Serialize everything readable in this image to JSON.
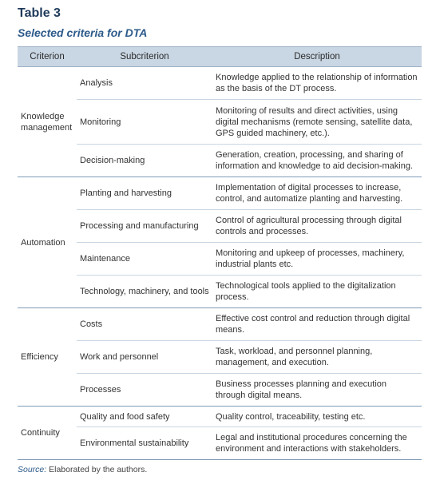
{
  "table_label": "Table 3",
  "table_title": "Selected criteria for DTA",
  "headers": {
    "criterion": "Criterion",
    "subcriterion": "Subcriterion",
    "description": "Description"
  },
  "groups": [
    {
      "criterion": "Knowledge management",
      "rows": [
        {
          "sub": "Analysis",
          "desc": "Knowledge applied to the relationship of information as the basis of the DT process."
        },
        {
          "sub": "Monitoring",
          "desc": "Monitoring of results and direct activities, using digital mechanisms (remote sensing, satellite data, GPS guided machinery, etc.)."
        },
        {
          "sub": "Decision-making",
          "desc": "Generation, creation, processing, and sharing of information and knowledge to aid decision-making."
        }
      ]
    },
    {
      "criterion": "Automation",
      "rows": [
        {
          "sub": "Planting and harvesting",
          "desc": "Implementation of digital processes to increase, control, and automatize planting and harvesting."
        },
        {
          "sub": "Processing and manufacturing",
          "desc": "Control of agricultural processing through digital controls and processes."
        },
        {
          "sub": "Maintenance",
          "desc": "Monitoring and upkeep of processes, machinery, industrial plants etc."
        },
        {
          "sub": "Technology, machinery, and tools",
          "desc": "Technological tools applied to the digitalization process."
        }
      ]
    },
    {
      "criterion": "Efficiency",
      "rows": [
        {
          "sub": "Costs",
          "desc": "Effective cost control and reduction through digital means."
        },
        {
          "sub": "Work and personnel",
          "desc": "Task, workload, and personnel planning, management, and execution."
        },
        {
          "sub": "Processes",
          "desc": "Business processes planning and execution through digital means."
        }
      ]
    },
    {
      "criterion": "Continuity",
      "rows": [
        {
          "sub": "Quality and food safety",
          "desc": "Quality control, traceability, testing etc."
        },
        {
          "sub": "Environmental sustainability",
          "desc": "Legal and institutional procedures concerning the environment and interactions with stakeholders."
        }
      ]
    }
  ],
  "source": {
    "label": "Source:",
    "text": " Elaborated by the authors."
  }
}
